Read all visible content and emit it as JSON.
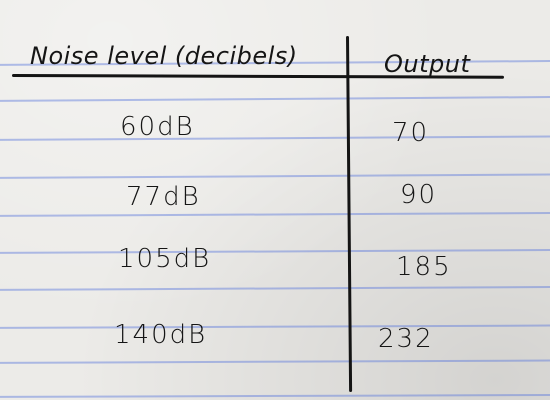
{
  "table": {
    "headers": {
      "noise": "Noise level (decibels)",
      "output": "Output"
    },
    "rows": [
      {
        "noise": "60dB",
        "output": "70"
      },
      {
        "noise": "77dB",
        "output": "90"
      },
      {
        "noise": "105dB",
        "output": "185"
      },
      {
        "noise": "140dB",
        "output": "232"
      }
    ]
  }
}
